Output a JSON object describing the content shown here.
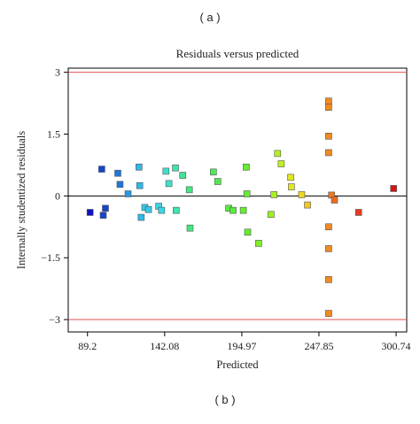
{
  "top_label": "( a )",
  "bottom_label": "( b )",
  "chart_data": {
    "type": "scatter",
    "title": "Residuals versus predicted",
    "xlabel": "Predicted",
    "ylabel": "Internally studentized residuals",
    "xlim": [
      76,
      308
    ],
    "ylim": [
      -3.3,
      3.1
    ],
    "xticks": [
      89.2,
      142.08,
      194.97,
      247.85,
      300.74
    ],
    "xtick_labels": [
      "89.2",
      "142.08",
      "194.97",
      "247.85",
      "300.74"
    ],
    "yticks": [
      3,
      1.5,
      0,
      -1.5,
      -3
    ],
    "ytick_labels": [
      "3",
      "1.5",
      "0",
      "−1.5",
      "−3"
    ],
    "reference_lines": [
      {
        "y": 3,
        "color": "#e05050"
      },
      {
        "y": 0,
        "color": "#000000"
      },
      {
        "y": -3,
        "color": "#e05050"
      }
    ],
    "grid": false,
    "legend": "none",
    "marker": "square",
    "color_scale": "predicted value, blue (low) to red (high)",
    "points": [
      {
        "x": 91.0,
        "y": -0.4,
        "color": "#1010c0"
      },
      {
        "x": 99.0,
        "y": 0.65,
        "color": "#1446cc"
      },
      {
        "x": 100.0,
        "y": -0.47,
        "color": "#1446cc"
      },
      {
        "x": 101.5,
        "y": -0.3,
        "color": "#1446cc"
      },
      {
        "x": 110.0,
        "y": 0.55,
        "color": "#1e78d8"
      },
      {
        "x": 111.5,
        "y": 0.28,
        "color": "#1e78d8"
      },
      {
        "x": 117.0,
        "y": 0.05,
        "color": "#2a98e0"
      },
      {
        "x": 124.5,
        "y": 0.7,
        "color": "#2fb8e8"
      },
      {
        "x": 125.0,
        "y": 0.25,
        "color": "#2fb8e8"
      },
      {
        "x": 126.0,
        "y": -0.52,
        "color": "#2fb8e8"
      },
      {
        "x": 128.5,
        "y": -0.28,
        "color": "#34c8ec"
      },
      {
        "x": 131.0,
        "y": -0.33,
        "color": "#34c8ec"
      },
      {
        "x": 138.0,
        "y": -0.25,
        "color": "#3ad6e6"
      },
      {
        "x": 140.0,
        "y": -0.35,
        "color": "#3ad6e6"
      },
      {
        "x": 143.0,
        "y": 0.6,
        "color": "#3ee0cc"
      },
      {
        "x": 145.0,
        "y": 0.3,
        "color": "#3ee0cc"
      },
      {
        "x": 149.5,
        "y": 0.68,
        "color": "#40e4b0"
      },
      {
        "x": 150.0,
        "y": -0.35,
        "color": "#40e4b0"
      },
      {
        "x": 154.5,
        "y": 0.5,
        "color": "#42e49a"
      },
      {
        "x": 159.0,
        "y": 0.15,
        "color": "#44e680"
      },
      {
        "x": 159.5,
        "y": -0.78,
        "color": "#44e680"
      },
      {
        "x": 175.5,
        "y": 0.58,
        "color": "#4ee85a"
      },
      {
        "x": 178.5,
        "y": 0.35,
        "color": "#50e850"
      },
      {
        "x": 186.0,
        "y": -0.3,
        "color": "#5aea40"
      },
      {
        "x": 189.0,
        "y": -0.35,
        "color": "#5aea40"
      },
      {
        "x": 196.0,
        "y": -0.35,
        "color": "#66ec30"
      },
      {
        "x": 198.0,
        "y": 0.7,
        "color": "#66ec30"
      },
      {
        "x": 198.5,
        "y": 0.05,
        "color": "#66ec30"
      },
      {
        "x": 199.0,
        "y": -0.88,
        "color": "#66ec30"
      },
      {
        "x": 206.5,
        "y": -1.15,
        "color": "#80ee26"
      },
      {
        "x": 215.0,
        "y": -0.45,
        "color": "#9cf020"
      },
      {
        "x": 217.0,
        "y": 0.03,
        "color": "#a8f020"
      },
      {
        "x": 219.5,
        "y": 1.03,
        "color": "#b4f020"
      },
      {
        "x": 222.0,
        "y": 0.78,
        "color": "#c0f020"
      },
      {
        "x": 228.5,
        "y": 0.45,
        "color": "#e0e820"
      },
      {
        "x": 229.0,
        "y": 0.22,
        "color": "#e0e820"
      },
      {
        "x": 236.0,
        "y": 0.03,
        "color": "#ecd820"
      },
      {
        "x": 240.0,
        "y": -0.22,
        "color": "#f0c820"
      },
      {
        "x": 254.5,
        "y": 2.3,
        "color": "#f08a20"
      },
      {
        "x": 254.5,
        "y": 2.15,
        "color": "#f08a20"
      },
      {
        "x": 254.5,
        "y": 1.45,
        "color": "#f08a20"
      },
      {
        "x": 254.5,
        "y": 1.05,
        "color": "#f08a20"
      },
      {
        "x": 254.5,
        "y": -0.75,
        "color": "#f08a20"
      },
      {
        "x": 254.5,
        "y": -1.28,
        "color": "#f08a20"
      },
      {
        "x": 254.5,
        "y": -2.03,
        "color": "#f08a20"
      },
      {
        "x": 254.5,
        "y": -2.85,
        "color": "#f08a20"
      },
      {
        "x": 256.5,
        "y": 0.02,
        "color": "#f07a20"
      },
      {
        "x": 258.5,
        "y": -0.1,
        "color": "#f06a20"
      },
      {
        "x": 275.0,
        "y": -0.4,
        "color": "#e83a20"
      },
      {
        "x": 299.0,
        "y": 0.18,
        "color": "#d41414"
      }
    ]
  }
}
